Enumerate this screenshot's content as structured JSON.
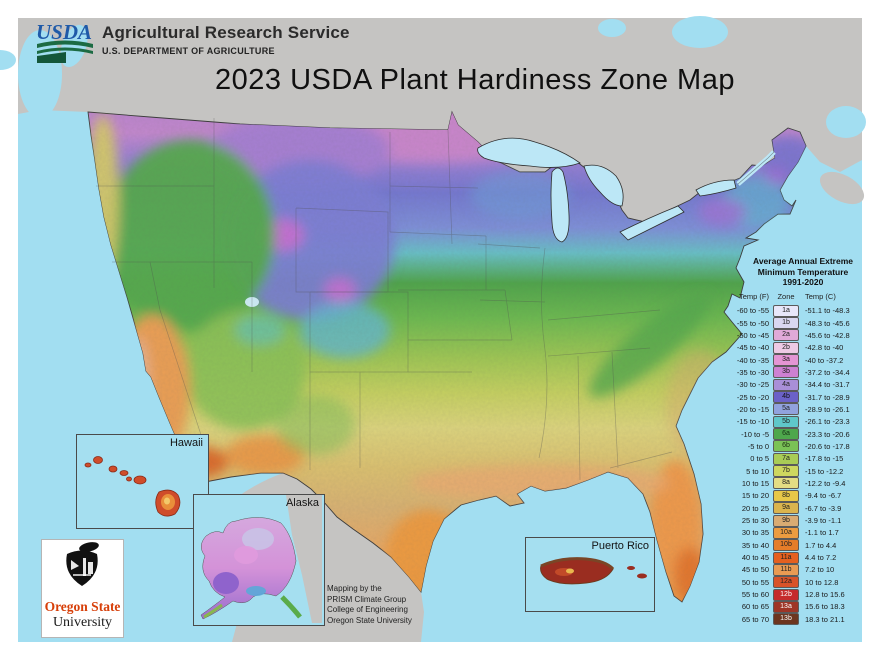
{
  "header": {
    "usda_logo_text": "USDA",
    "agency": "Agricultural Research Service",
    "department": "U.S. DEPARTMENT OF AGRICULTURE"
  },
  "title": "2023 USDA Plant Hardiness Zone Map",
  "legend": {
    "title_line1": "Average Annual Extreme",
    "title_line2": "Minimum Temperature",
    "title_line3": "1991-2020",
    "columns": {
      "f": "Temp (F)",
      "zone": "Zone",
      "c": "Temp (C)"
    },
    "rows": [
      {
        "f": "-60 to -55",
        "zone": "1a",
        "c": "-51.1 to -48.3",
        "color": "#e8e7f9",
        "text_color": "#222222"
      },
      {
        "f": "-55 to -50",
        "zone": "1b",
        "c": "-48.3 to -45.6",
        "color": "#d9d7f0",
        "text_color": "#222222"
      },
      {
        "f": "-50 to -45",
        "zone": "2a",
        "c": "-45.6 to -42.8",
        "color": "#e0a9d8",
        "text_color": "#222222"
      },
      {
        "f": "-45 to -40",
        "zone": "2b",
        "c": "-42.8 to -40",
        "color": "#eecae5",
        "text_color": "#222222"
      },
      {
        "f": "-40 to -35",
        "zone": "3a",
        "c": "-40 to -37.2",
        "color": "#e495d4",
        "text_color": "#222222"
      },
      {
        "f": "-35 to -30",
        "zone": "3b",
        "c": "-37.2 to -34.4",
        "color": "#cd80d2",
        "text_color": "#222222"
      },
      {
        "f": "-30 to -25",
        "zone": "4a",
        "c": "-34.4 to -31.7",
        "color": "#a98fd8",
        "text_color": "#222222"
      },
      {
        "f": "-25 to -20",
        "zone": "4b",
        "c": "-31.7 to -28.9",
        "color": "#6b61c8",
        "text_color": "#111111"
      },
      {
        "f": "-20 to -15",
        "zone": "5a",
        "c": "-28.9 to -26.1",
        "color": "#91a2dd",
        "text_color": "#222222"
      },
      {
        "f": "-15 to -10",
        "zone": "5b",
        "c": "-26.1 to -23.3",
        "color": "#5fc7c9",
        "text_color": "#222222"
      },
      {
        "f": "-10 to -5",
        "zone": "6a",
        "c": "-23.3 to -20.6",
        "color": "#4ea74c",
        "text_color": "#173217"
      },
      {
        "f": "-5 to 0",
        "zone": "6b",
        "c": "-20.6 to -17.8",
        "color": "#7ac256",
        "text_color": "#1d2e12"
      },
      {
        "f": "0 to 5",
        "zone": "7a",
        "c": "-17.8 to -15",
        "color": "#a9cc56",
        "text_color": "#222222"
      },
      {
        "f": "5 to 10",
        "zone": "7b",
        "c": "-15 to -12.2",
        "color": "#ced75f",
        "text_color": "#222222"
      },
      {
        "f": "10 to 15",
        "zone": "8a",
        "c": "-12.2 to -9.4",
        "color": "#e4dd84",
        "text_color": "#222222"
      },
      {
        "f": "15 to 20",
        "zone": "8b",
        "c": "-9.4 to -6.7",
        "color": "#e8c748",
        "text_color": "#222222"
      },
      {
        "f": "20 to 25",
        "zone": "9a",
        "c": "-6.7 to -3.9",
        "color": "#dab44e",
        "text_color": "#222222"
      },
      {
        "f": "25 to 30",
        "zone": "9b",
        "c": "-3.9 to -1.1",
        "color": "#d9ab72",
        "text_color": "#222222"
      },
      {
        "f": "30 to 35",
        "zone": "10a",
        "c": "-1.1 to 1.7",
        "color": "#ec9c40",
        "text_color": "#222222"
      },
      {
        "f": "35 to 40",
        "zone": "10b",
        "c": "1.7 to 4.4",
        "color": "#e57d29",
        "text_color": "#222222"
      },
      {
        "f": "40 to 45",
        "zone": "11a",
        "c": "4.4 to 7.2",
        "color": "#e5601f",
        "text_color": "#222222"
      },
      {
        "f": "45 to 50",
        "zone": "11b",
        "c": "7.2 to 10",
        "color": "#e99b53",
        "text_color": "#222222"
      },
      {
        "f": "50 to 55",
        "zone": "12a",
        "c": "10 to 12.8",
        "color": "#d85329",
        "text_color": "#222222"
      },
      {
        "f": "55 to 60",
        "zone": "12b",
        "c": "12.8 to 15.6",
        "color": "#c52a2c",
        "text_color": "#ffffff"
      },
      {
        "f": "60 to 65",
        "zone": "13a",
        "c": "15.6 to 18.3",
        "color": "#9e3526",
        "text_color": "#ffffff"
      },
      {
        "f": "65 to 70",
        "zone": "13b",
        "c": "18.3 to 21.1",
        "color": "#6c351f",
        "text_color": "#ffffff"
      }
    ]
  },
  "insets": {
    "hawaii": "Hawaii",
    "alaska": "Alaska",
    "puerto_rico": "Puerto Rico"
  },
  "attribution": {
    "line1": "Mapping by the",
    "line2": "PRISM Climate Group",
    "line3": "College of Engineering",
    "line4": "Oregon State University"
  },
  "osu": {
    "line1": "Oregon State",
    "line2": "University"
  },
  "colors": {
    "ocean": "#a2def1",
    "other_land": "#c5c4c2",
    "frame": "#ffffff",
    "usda_blue": "#1f5aa8",
    "usda_green": "#1c6b43",
    "osu_orange": "#d73f09"
  }
}
